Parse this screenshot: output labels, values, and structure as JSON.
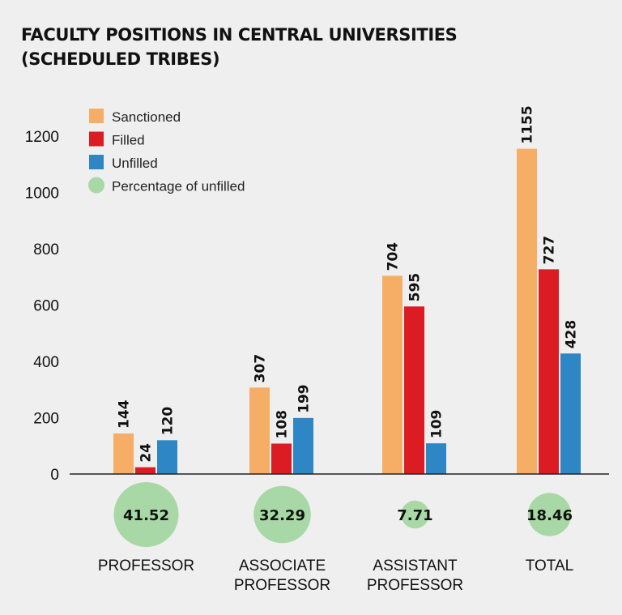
{
  "title": {
    "line1": "FACULTY POSITIONS IN CENTRAL UNIVERSITIES",
    "line2": "(SCHEDULED TRIBES)"
  },
  "colors": {
    "sanctioned": "#f6ad66",
    "filled": "#dc1c23",
    "unfilled": "#2f86c4",
    "percentage": "#a8d8a6",
    "axis": "#222222",
    "background": "#efefef"
  },
  "chart_data": {
    "type": "bar",
    "title": "FACULTY POSITIONS IN CENTRAL UNIVERSITIES (SCHEDULED TRIBES)",
    "xlabel": "",
    "ylabel": "",
    "ylim": [
      0,
      1200
    ],
    "y_ticks": [
      0,
      200,
      400,
      600,
      800,
      1000,
      1200
    ],
    "categories": [
      [
        "PROFESSOR"
      ],
      [
        "ASSOCIATE",
        "PROFESSOR"
      ],
      [
        "ASSISTANT",
        "PROFESSOR"
      ],
      [
        "TOTAL"
      ]
    ],
    "series": [
      {
        "name": "Sanctioned",
        "key": "sanctioned",
        "values": [
          144,
          307,
          704,
          1155
        ]
      },
      {
        "name": "Filled",
        "key": "filled",
        "values": [
          24,
          108,
          595,
          727
        ]
      },
      {
        "name": "Unfilled",
        "key": "unfilled",
        "values": [
          120,
          199,
          109,
          428
        ]
      }
    ],
    "percentage_unfilled": {
      "name": "Percentage of unfilled",
      "values": [
        "41.52",
        "32.29",
        "7.71",
        "18.46"
      ]
    },
    "legend_position": "top-left"
  }
}
